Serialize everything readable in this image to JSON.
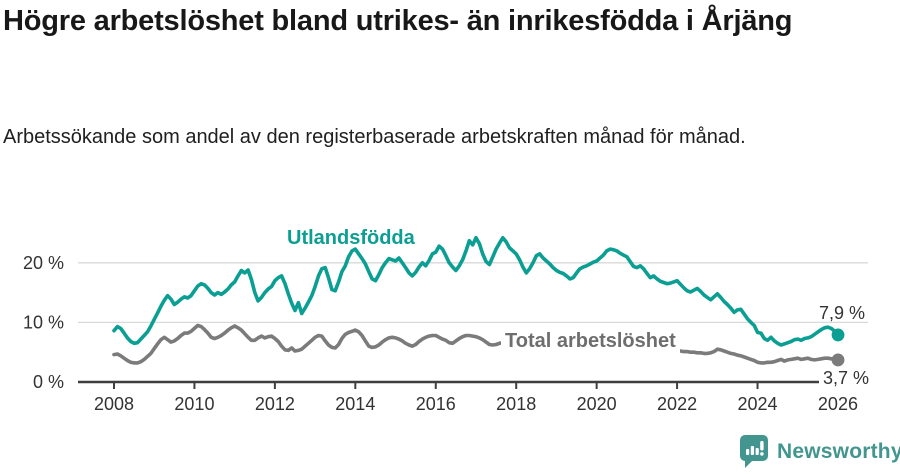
{
  "header": {
    "title": "Högre arbetslöshet bland utrikes- än inrikesfödda i Årjäng",
    "subtitle": "Arbetssökande som andel av den registerbaserade arbetskraften månad för månad."
  },
  "chart_data": {
    "type": "line",
    "unit": "%",
    "frequency": "monthly",
    "x_start": "2008-01",
    "x_end": "2026-01",
    "ylim": [
      0,
      26
    ],
    "grid": "horizontal",
    "legend_position": "inline-labels",
    "x_ticks": [
      "2008",
      "2010",
      "2012",
      "2014",
      "2016",
      "2018",
      "2020",
      "2022",
      "2024",
      "2026"
    ],
    "y_ticks": [
      {
        "value": 0,
        "label": "0 %"
      },
      {
        "value": 10,
        "label": "10 %"
      },
      {
        "value": 20,
        "label": "20 %"
      }
    ],
    "series": [
      {
        "name": "Utlandsfödda",
        "color": "#0b9e93",
        "end_label": "7,9 %",
        "values": [
          8.6,
          9.3,
          9.0,
          8.2,
          7.4,
          6.8,
          6.5,
          6.6,
          7.2,
          7.8,
          8.4,
          9.4,
          10.5,
          11.6,
          12.7,
          13.7,
          14.5,
          13.9,
          13.0,
          13.4,
          13.9,
          14.3,
          14.1,
          14.5,
          15.3,
          16.1,
          16.5,
          16.3,
          15.7,
          15.0,
          14.6,
          15.0,
          14.7,
          15.1,
          15.6,
          16.3,
          16.8,
          17.8,
          18.7,
          18.3,
          18.8,
          17.2,
          15.0,
          13.6,
          14.2,
          15.0,
          15.6,
          16.0,
          17.0,
          17.5,
          17.8,
          16.5,
          14.8,
          13.2,
          12.0,
          13.3,
          11.5,
          12.4,
          13.4,
          14.5,
          16.0,
          17.8,
          19.0,
          19.2,
          17.5,
          15.5,
          15.3,
          16.8,
          18.5,
          19.5,
          21.0,
          22.0,
          22.3,
          21.5,
          20.7,
          19.8,
          18.5,
          17.3,
          17.0,
          18.0,
          19.2,
          20.0,
          20.7,
          20.5,
          20.3,
          20.8,
          20.0,
          19.2,
          18.3,
          17.8,
          18.4,
          19.3,
          20.0,
          19.5,
          20.4,
          21.5,
          21.8,
          22.8,
          22.3,
          21.2,
          20.0,
          19.3,
          18.7,
          19.5,
          20.5,
          22.0,
          23.7,
          23.0,
          24.2,
          23.2,
          21.5,
          20.2,
          19.7,
          21.0,
          22.3,
          23.3,
          24.2,
          23.5,
          22.5,
          22.0,
          21.5,
          20.5,
          19.3,
          18.3,
          19.0,
          20.0,
          21.2,
          21.5,
          20.8,
          20.3,
          19.8,
          19.2,
          18.7,
          18.4,
          18.2,
          17.8,
          17.3,
          17.5,
          18.3,
          19.0,
          19.3,
          19.5,
          19.8,
          20.1,
          20.3,
          20.8,
          21.3,
          22.0,
          22.3,
          22.2,
          22.0,
          21.6,
          21.3,
          21.0,
          20.2,
          19.4,
          19.2,
          19.5,
          19.0,
          18.2,
          17.5,
          17.8,
          17.3,
          16.9,
          16.7,
          16.5,
          16.6,
          16.8,
          17.0,
          16.4,
          15.8,
          15.3,
          15.1,
          15.4,
          15.7,
          15.2,
          14.6,
          14.2,
          13.8,
          14.3,
          14.8,
          14.2,
          13.5,
          13.0,
          12.4,
          11.7,
          12.1,
          12.2,
          11.4,
          10.6,
          10.0,
          9.5,
          8.3,
          8.2,
          7.3,
          7.0,
          7.5,
          6.9,
          6.5,
          6.2,
          6.4,
          6.6,
          6.8,
          7.1,
          7.2,
          7.0,
          7.3,
          7.4,
          7.6,
          8.0,
          8.4,
          8.8,
          9.1,
          9.2,
          9.0,
          8.5,
          7.9
        ]
      },
      {
        "name": "Total arbetslöshet",
        "color": "#7b7b7b",
        "end_label": "3,7 %",
        "values": [
          4.6,
          4.7,
          4.4,
          4.0,
          3.6,
          3.3,
          3.2,
          3.2,
          3.4,
          3.8,
          4.3,
          4.8,
          5.6,
          6.4,
          7.1,
          7.5,
          7.1,
          6.7,
          6.9,
          7.3,
          7.8,
          8.2,
          8.2,
          8.5,
          9.0,
          9.5,
          9.3,
          8.8,
          8.2,
          7.5,
          7.3,
          7.5,
          7.8,
          8.2,
          8.7,
          9.1,
          9.4,
          9.1,
          8.7,
          8.1,
          7.5,
          7.0,
          7.0,
          7.4,
          7.7,
          7.4,
          7.6,
          7.7,
          7.3,
          6.8,
          6.0,
          5.4,
          5.3,
          5.7,
          5.2,
          5.3,
          5.5,
          6.0,
          6.5,
          7.0,
          7.5,
          7.8,
          7.7,
          6.9,
          6.2,
          5.8,
          5.7,
          6.3,
          7.3,
          8.0,
          8.3,
          8.5,
          8.7,
          8.4,
          7.8,
          6.9,
          6.0,
          5.8,
          5.9,
          6.2,
          6.7,
          7.1,
          7.4,
          7.5,
          7.4,
          7.2,
          6.9,
          6.5,
          6.2,
          6.0,
          6.3,
          6.8,
          7.2,
          7.5,
          7.7,
          7.8,
          7.8,
          7.5,
          7.2,
          7.0,
          6.6,
          6.5,
          6.9,
          7.3,
          7.6,
          7.8,
          7.8,
          7.7,
          7.6,
          7.4,
          7.1,
          6.7,
          6.3,
          6.2,
          6.3,
          6.5,
          6.6,
          6.7,
          6.8,
          6.9,
          6.8,
          6.7,
          6.5,
          6.3,
          6.1,
          6.0,
          6.1,
          6.2,
          6.3,
          6.3,
          6.2,
          6.1,
          6.0,
          5.9,
          5.8,
          5.7,
          5.7,
          5.6,
          5.7,
          5.9,
          6.0,
          6.1,
          6.2,
          6.4,
          6.7,
          7.0,
          7.4,
          7.7,
          7.7,
          7.6,
          7.5,
          7.3,
          7.1,
          6.9,
          6.7,
          6.6,
          6.4,
          6.3,
          6.1,
          5.9,
          5.7,
          5.6,
          5.5,
          5.5,
          5.4,
          5.4,
          5.3,
          5.3,
          5.2,
          5.2,
          5.1,
          5.1,
          5.0,
          5.0,
          4.9,
          4.9,
          4.8,
          4.8,
          4.9,
          5.1,
          5.5,
          5.4,
          5.2,
          5.0,
          4.8,
          4.7,
          4.5,
          4.4,
          4.2,
          4.0,
          3.8,
          3.6,
          3.3,
          3.2,
          3.2,
          3.3,
          3.3,
          3.4,
          3.6,
          3.8,
          3.5,
          3.7,
          3.8,
          3.9,
          4.0,
          3.8,
          3.9,
          4.0,
          3.8,
          3.7,
          3.8,
          3.9,
          4.0,
          4.0,
          3.9,
          3.8,
          3.7
        ]
      }
    ]
  },
  "footer": {
    "brand": "Newsworthy",
    "brand_color": "#43968f"
  }
}
